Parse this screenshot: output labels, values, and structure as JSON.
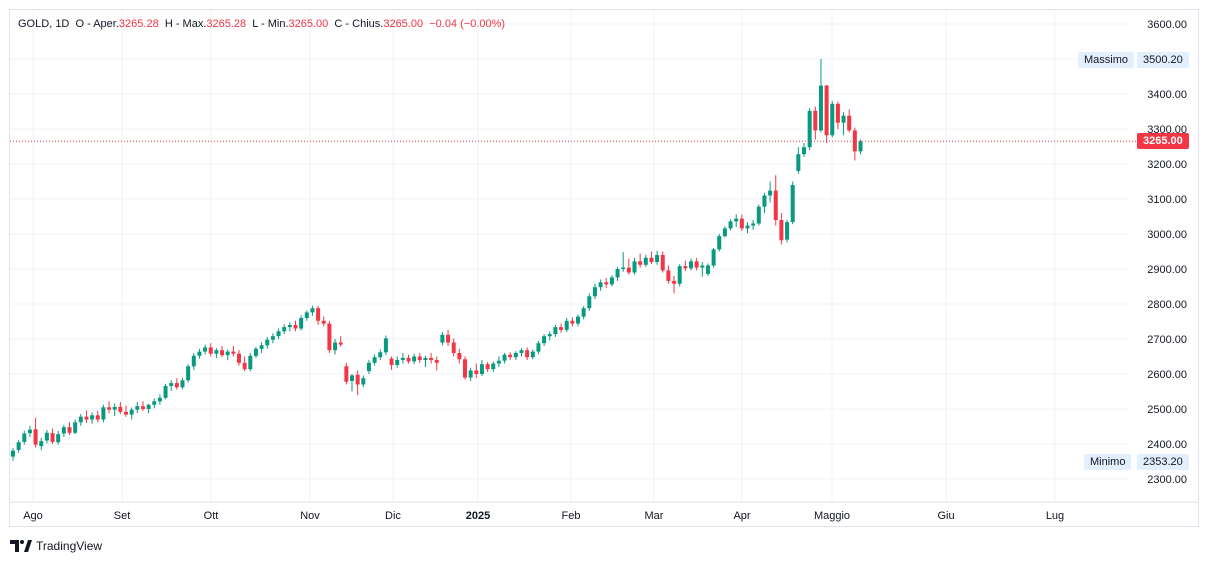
{
  "legend": {
    "symbol": "GOLD",
    "interval": "1D",
    "open_label": "O - Aper.",
    "open": "3265.28",
    "high_label": "H - Max.",
    "high": "3265.28",
    "low_label": "L - Min.",
    "low": "3265.00",
    "close_label": "C - Chius.",
    "close": "3265.00",
    "change": "−0.04 (−0.00%)"
  },
  "brand": "TradingView",
  "markers": {
    "high_label": "Massimo",
    "high_value": "3500.20",
    "low_label": "Minimo",
    "low_value": "2353.20",
    "last_value": "3265.00"
  },
  "colors": {
    "up": "#089981",
    "down": "#f23645",
    "grid": "#f0f3fa",
    "axis_text": "#131722",
    "last_price": "#f23645",
    "marker_bg": "#e3effd"
  },
  "icons": {
    "brand_logo": "tradingview-logo-icon"
  },
  "chart_data": {
    "type": "candlestick",
    "title": "",
    "xlabel": "",
    "ylabel": "",
    "y_ticks": [
      "2300.00",
      "2400.00",
      "2500.00",
      "2600.00",
      "2700.00",
      "2800.00",
      "2900.00",
      "3000.00",
      "3100.00",
      "3200.00",
      "3300.00",
      "3400.00",
      "3500.00",
      "3600.00"
    ],
    "ylim": [
      2240,
      3655
    ],
    "x_ticks": [
      "Ago",
      "Set",
      "Ott",
      "Nov",
      "Dic",
      "2025",
      "Feb",
      "Mar",
      "Apr",
      "Maggio",
      "Giu",
      "Lug"
    ],
    "grid": true,
    "last_price": 3265.0,
    "series": [
      {
        "fields": [
          "open",
          "high",
          "low",
          "close"
        ],
        "values": [
          [
            2364,
            2388,
            2352,
            2381
          ],
          [
            2383,
            2412,
            2375,
            2405
          ],
          [
            2406,
            2438,
            2398,
            2430
          ],
          [
            2431,
            2452,
            2420,
            2441
          ],
          [
            2442,
            2475,
            2390,
            2398
          ],
          [
            2394,
            2418,
            2382,
            2408
          ],
          [
            2410,
            2440,
            2402,
            2432
          ],
          [
            2431,
            2444,
            2400,
            2406
          ],
          [
            2405,
            2438,
            2398,
            2428
          ],
          [
            2430,
            2455,
            2420,
            2448
          ],
          [
            2448,
            2462,
            2426,
            2432
          ],
          [
            2432,
            2470,
            2428,
            2462
          ],
          [
            2462,
            2486,
            2452,
            2478
          ],
          [
            2478,
            2496,
            2460,
            2470
          ],
          [
            2470,
            2490,
            2458,
            2482
          ],
          [
            2482,
            2495,
            2462,
            2470
          ],
          [
            2470,
            2512,
            2462,
            2505
          ],
          [
            2505,
            2522,
            2488,
            2498
          ],
          [
            2498,
            2516,
            2480,
            2506
          ],
          [
            2506,
            2520,
            2486,
            2492
          ],
          [
            2492,
            2510,
            2478,
            2484
          ],
          [
            2484,
            2504,
            2470,
            2498
          ],
          [
            2498,
            2520,
            2488,
            2508
          ],
          [
            2508,
            2522,
            2494,
            2500
          ],
          [
            2500,
            2515,
            2488,
            2512
          ],
          [
            2512,
            2530,
            2502,
            2522
          ],
          [
            2522,
            2542,
            2512,
            2532
          ],
          [
            2532,
            2572,
            2528,
            2566
          ],
          [
            2566,
            2582,
            2552,
            2574
          ],
          [
            2574,
            2588,
            2556,
            2562
          ],
          [
            2562,
            2588,
            2556,
            2582
          ],
          [
            2582,
            2628,
            2576,
            2622
          ],
          [
            2622,
            2660,
            2612,
            2652
          ],
          [
            2652,
            2672,
            2644,
            2664
          ],
          [
            2664,
            2684,
            2656,
            2676
          ],
          [
            2676,
            2688,
            2650,
            2658
          ],
          [
            2658,
            2674,
            2646,
            2668
          ],
          [
            2668,
            2680,
            2648,
            2654
          ],
          [
            2654,
            2670,
            2640,
            2664
          ],
          [
            2664,
            2680,
            2650,
            2658
          ],
          [
            2658,
            2668,
            2624,
            2632
          ],
          [
            2632,
            2650,
            2608,
            2614
          ],
          [
            2614,
            2660,
            2608,
            2652
          ],
          [
            2652,
            2678,
            2646,
            2672
          ],
          [
            2672,
            2690,
            2660,
            2682
          ],
          [
            2682,
            2706,
            2672,
            2698
          ],
          [
            2698,
            2716,
            2688,
            2708
          ],
          [
            2708,
            2730,
            2700,
            2722
          ],
          [
            2722,
            2742,
            2714,
            2734
          ],
          [
            2734,
            2748,
            2722,
            2740
          ],
          [
            2740,
            2752,
            2722,
            2730
          ],
          [
            2730,
            2768,
            2724,
            2760
          ],
          [
            2760,
            2782,
            2752,
            2776
          ],
          [
            2776,
            2795,
            2766,
            2788
          ],
          [
            2788,
            2795,
            2740,
            2752
          ],
          [
            2752,
            2764,
            2736,
            2744
          ],
          [
            2744,
            2752,
            2660,
            2668
          ],
          [
            2668,
            2700,
            2656,
            2690
          ],
          [
            2690,
            2708,
            2678,
            2684
          ],
          [
            2622,
            2632,
            2570,
            2578
          ],
          [
            2580,
            2600,
            2550,
            2596
          ],
          [
            2598,
            2610,
            2540,
            2570
          ],
          [
            2570,
            2596,
            2562,
            2588
          ],
          [
            2608,
            2640,
            2600,
            2632
          ],
          [
            2632,
            2656,
            2624,
            2648
          ],
          [
            2648,
            2670,
            2640,
            2662
          ],
          [
            2662,
            2710,
            2654,
            2702
          ],
          [
            2644,
            2650,
            2612,
            2626
          ],
          [
            2626,
            2650,
            2618,
            2640
          ],
          [
            2640,
            2660,
            2630,
            2646
          ],
          [
            2646,
            2655,
            2630,
            2636
          ],
          [
            2636,
            2658,
            2628,
            2650
          ],
          [
            2650,
            2660,
            2632,
            2640
          ],
          [
            2640,
            2652,
            2620,
            2646
          ],
          [
            2646,
            2660,
            2630,
            2640
          ],
          [
            2640,
            2650,
            2610,
            2632
          ],
          [
            2690,
            2720,
            2682,
            2712
          ],
          [
            2712,
            2726,
            2680,
            2690
          ],
          [
            2690,
            2702,
            2650,
            2660
          ],
          [
            2660,
            2672,
            2630,
            2642
          ],
          [
            2642,
            2650,
            2584,
            2590
          ],
          [
            2590,
            2618,
            2580,
            2610
          ],
          [
            2610,
            2630,
            2588,
            2600
          ],
          [
            2600,
            2640,
            2594,
            2628
          ],
          [
            2628,
            2634,
            2606,
            2614
          ],
          [
            2614,
            2636,
            2606,
            2630
          ],
          [
            2630,
            2650,
            2620,
            2638
          ],
          [
            2638,
            2660,
            2630,
            2655
          ],
          [
            2655,
            2662,
            2640,
            2648
          ],
          [
            2648,
            2665,
            2640,
            2660
          ],
          [
            2660,
            2674,
            2650,
            2668
          ],
          [
            2668,
            2676,
            2640,
            2648
          ],
          [
            2648,
            2670,
            2642,
            2664
          ],
          [
            2664,
            2694,
            2656,
            2688
          ],
          [
            2688,
            2714,
            2680,
            2708
          ],
          [
            2708,
            2722,
            2696,
            2714
          ],
          [
            2714,
            2740,
            2706,
            2734
          ],
          [
            2734,
            2744,
            2718,
            2726
          ],
          [
            2726,
            2760,
            2720,
            2752
          ],
          [
            2752,
            2762,
            2736,
            2744
          ],
          [
            2744,
            2770,
            2736,
            2764
          ],
          [
            2764,
            2794,
            2756,
            2788
          ],
          [
            2788,
            2830,
            2780,
            2822
          ],
          [
            2822,
            2858,
            2814,
            2848
          ],
          [
            2848,
            2870,
            2838,
            2862
          ],
          [
            2862,
            2874,
            2846,
            2856
          ],
          [
            2856,
            2882,
            2850,
            2876
          ],
          [
            2876,
            2906,
            2866,
            2900
          ],
          [
            2900,
            2948,
            2892,
            2904
          ],
          [
            2904,
            2930,
            2884,
            2890
          ],
          [
            2890,
            2932,
            2884,
            2922
          ],
          [
            2922,
            2944,
            2904,
            2912
          ],
          [
            2912,
            2940,
            2906,
            2932
          ],
          [
            2932,
            2950,
            2914,
            2920
          ],
          [
            2920,
            2952,
            2912,
            2940
          ],
          [
            2940,
            2950,
            2890,
            2896
          ],
          [
            2896,
            2910,
            2858,
            2866
          ],
          [
            2866,
            2880,
            2830,
            2858
          ],
          [
            2858,
            2914,
            2850,
            2908
          ],
          [
            2908,
            2924,
            2894,
            2902
          ],
          [
            2902,
            2930,
            2896,
            2922
          ],
          [
            2922,
            2932,
            2896,
            2904
          ],
          [
            2904,
            2920,
            2878,
            2910
          ],
          [
            2886,
            2916,
            2880,
            2910
          ],
          [
            2910,
            2960,
            2904,
            2956
          ],
          [
            2956,
            3000,
            2950,
            2994
          ],
          [
            2994,
            3022,
            2990,
            3016
          ],
          [
            3016,
            3042,
            3010,
            3036
          ],
          [
            3036,
            3056,
            3020,
            3044
          ],
          [
            3044,
            3056,
            3008,
            3016
          ],
          [
            3016,
            3034,
            3002,
            3024
          ],
          [
            3024,
            3040,
            3012,
            3030
          ],
          [
            3030,
            3084,
            3024,
            3078
          ],
          [
            3078,
            3118,
            3060,
            3110
          ],
          [
            3110,
            3150,
            3090,
            3124
          ],
          [
            3124,
            3168,
            3024,
            3040
          ],
          [
            3040,
            3060,
            2970,
            2982
          ],
          [
            2984,
            3040,
            2976,
            3034
          ],
          [
            3034,
            3150,
            3028,
            3140
          ],
          [
            3180,
            3248,
            3172,
            3228
          ],
          [
            3228,
            3260,
            3220,
            3248
          ],
          [
            3248,
            3360,
            3240,
            3352
          ],
          [
            3352,
            3364,
            3270,
            3296
          ],
          [
            3296,
            3500,
            3290,
            3424
          ],
          [
            3424,
            3426,
            3260,
            3282
          ],
          [
            3282,
            3380,
            3276,
            3372
          ],
          [
            3372,
            3378,
            3300,
            3318
          ],
          [
            3318,
            3348,
            3282,
            3338
          ],
          [
            3338,
            3356,
            3290,
            3296
          ],
          [
            3296,
            3304,
            3210,
            3236
          ],
          [
            3236,
            3270,
            3228,
            3265
          ]
        ]
      }
    ]
  }
}
